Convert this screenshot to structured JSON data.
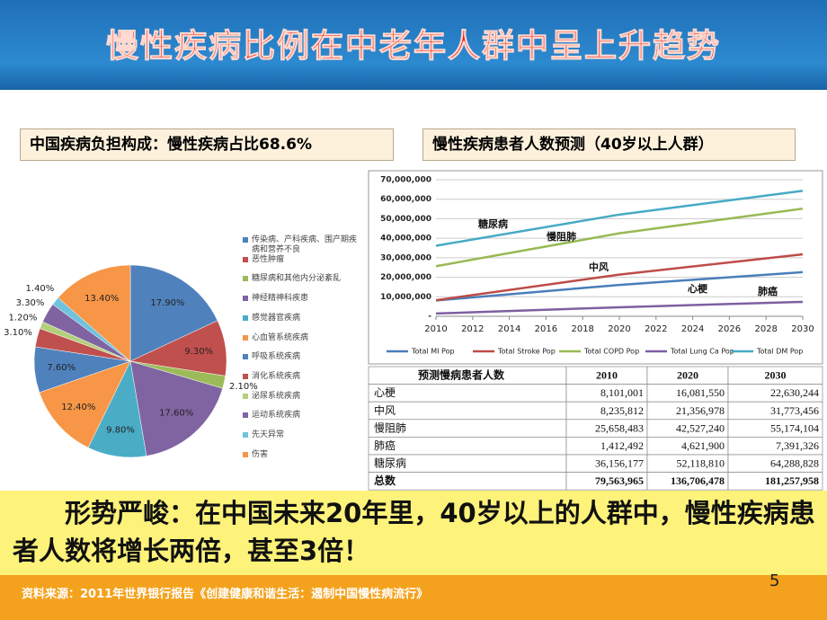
{
  "title": "慢性疾病比例在中老年人群中呈上升趋势",
  "pie_header": "中国疾病负担构成：慢性疾病占比68.6%",
  "line_header": "慢性疾病患者人数预测（40岁以上人群）",
  "chart_data": [
    {
      "type": "pie",
      "categories": [
        "传染病、产科疾病、围产期疾病和营养不良",
        "恶性肿瘤",
        "糖尿病和其他内分泌紊乱",
        "神经精神科疾患",
        "感觉器官疾病",
        "心血管系统疾病",
        "呼吸系统疾病",
        "消化系统疾病",
        "泌尿系统疾病",
        "运动系统疾病",
        "先天异常",
        "伤害"
      ],
      "values": [
        17.9,
        9.3,
        2.1,
        17.6,
        9.8,
        12.4,
        7.6,
        3.1,
        1.2,
        3.3,
        1.4,
        13.4
      ],
      "value_labels": [
        "17.90%",
        "9.30%",
        "2.10%",
        "17.60%",
        "9.80%",
        "12.40%",
        "7.60%",
        "3.10%",
        "1.20%",
        "3.30%",
        "1.40%",
        "13.40%"
      ],
      "colors": [
        "#4f81bd",
        "#c0504d",
        "#9bbb59",
        "#8064a2",
        "#4bacc6",
        "#f79646",
        "#4f81bd",
        "#c0504d",
        "#b3cf7c",
        "#8064a2",
        "#6fc3dc",
        "#f79646"
      ]
    },
    {
      "type": "line",
      "x": [
        2010,
        2020,
        2030
      ],
      "xlim": [
        2010,
        2030
      ],
      "xticks": [
        2010,
        2012,
        2014,
        2016,
        2018,
        2020,
        2022,
        2024,
        2026,
        2028,
        2030
      ],
      "ylim": [
        0,
        70000000
      ],
      "yticks": [
        {
          "value": 0,
          "label": "-"
        },
        {
          "value": 10000000,
          "label": "10,000,000"
        },
        {
          "value": 20000000,
          "label": "20,000,000"
        },
        {
          "value": 30000000,
          "label": "30,000,000"
        },
        {
          "value": 40000000,
          "label": "40,000,000"
        },
        {
          "value": 50000000,
          "label": "50,000,000"
        },
        {
          "value": 60000000,
          "label": "60,000,000"
        },
        {
          "value": 70000000,
          "label": "70,000,000"
        }
      ],
      "series": [
        {
          "name": "Total MI Pop",
          "color": "#4a7ebb",
          "values": [
            8101001,
            16081550,
            22630244
          ]
        },
        {
          "name": "Total Stroke Pop",
          "color": "#be4b48",
          "values": [
            8235812,
            21356978,
            31773456
          ]
        },
        {
          "name": "Total COPD Pop",
          "color": "#98b954",
          "values": [
            25658483,
            42527240,
            55174104
          ]
        },
        {
          "name": "Total Lung Ca Pop",
          "color": "#7d60a0",
          "values": [
            1412492,
            4621900,
            7391326
          ]
        },
        {
          "name": "Total DM Pop",
          "color": "#46aac5",
          "values": [
            36156177,
            52118810,
            64288828
          ]
        }
      ],
      "annotations": [
        "糖尿病",
        "慢阻肺",
        "中风",
        "心梗",
        "肺癌"
      ]
    }
  ],
  "table": {
    "header": [
      "预测慢病患者人数",
      "2010",
      "2020",
      "2030"
    ],
    "rows": [
      [
        "心梗",
        "8,101,001",
        "16,081,550",
        "22,630,244"
      ],
      [
        "中风",
        "8,235,812",
        "21,356,978",
        "31,773,456"
      ],
      [
        "慢阻肺",
        "25,658,483",
        "42,527,240",
        "55,174,104"
      ],
      [
        "肺癌",
        "1,412,492",
        "4,621,900",
        "7,391,326"
      ],
      [
        "糖尿病",
        "36,156,177",
        "52,118,810",
        "64,288,828"
      ],
      [
        "总数",
        "79,563,965",
        "136,706,478",
        "181,257,958"
      ]
    ]
  },
  "callout": "形势严峻：在中国未来20年里，40岁以上的人群中，慢性疾病患者人数将增长两倍，甚至3倍！",
  "source": "资料来源：2011年世界银行报告《创建健康和谐生活：遏制中国慢性病流行》",
  "page_number": "5"
}
